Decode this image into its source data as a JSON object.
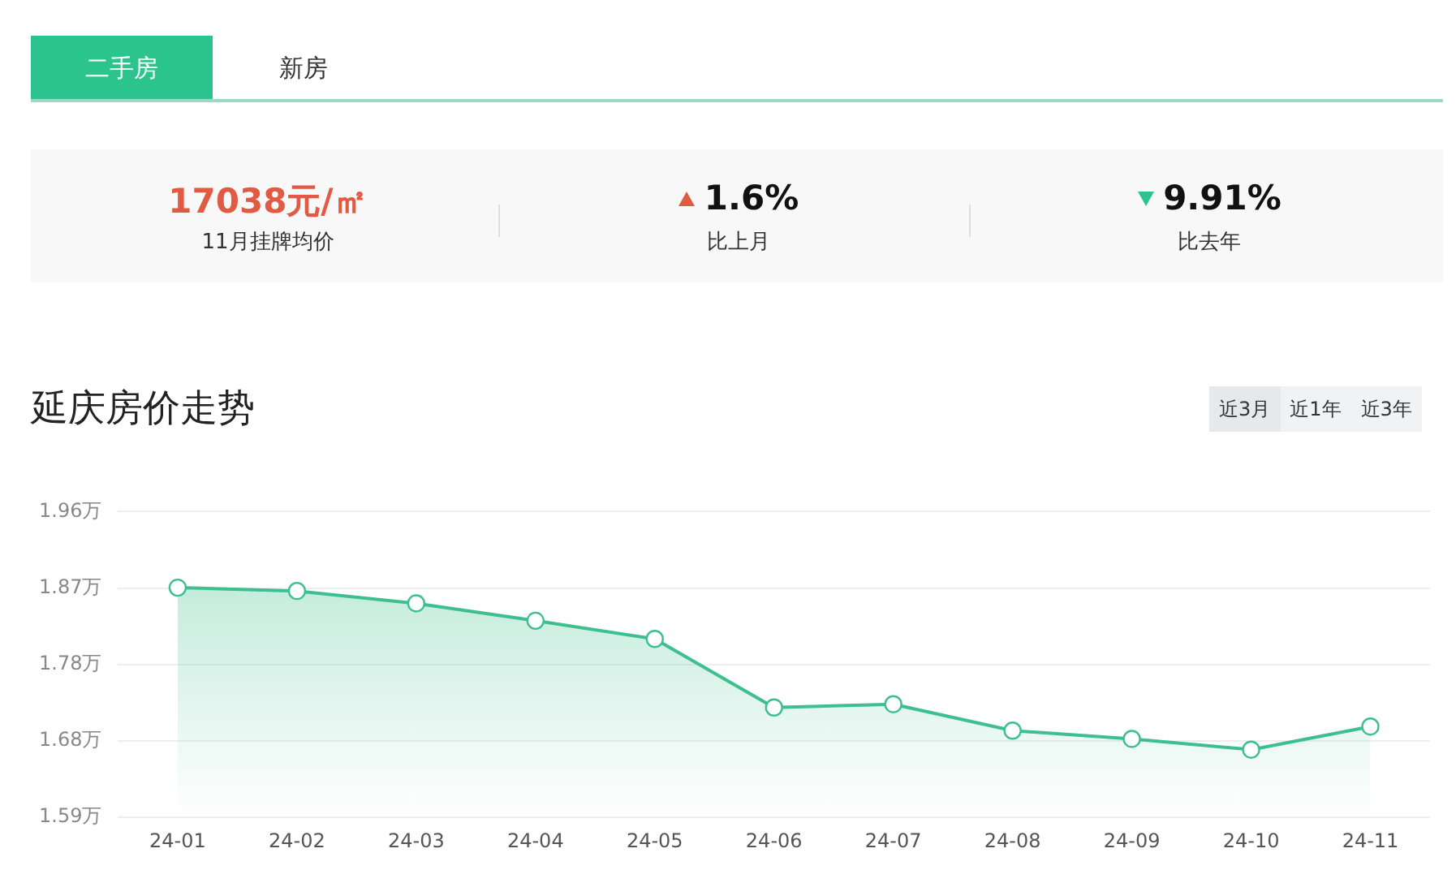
{
  "chart_data": {
    "type": "area",
    "title": "延庆房价走势",
    "annotations": [
      "二手房",
      "新房",
      "17038元/㎡",
      "11月挂牌均价",
      "1.6%",
      "比上月",
      "9.91%",
      "比去年",
      "近3月",
      "近1年",
      "近3年"
    ],
    "categories": [
      "24-01",
      "24-02",
      "24-03",
      "24-04",
      "24-05",
      "24-06",
      "24-07",
      "24-08",
      "24-09",
      "24-10",
      "24-11"
    ],
    "series": [
      {
        "color": "#3dbf8f",
        "values": [
          1.868,
          1.864,
          1.849,
          1.828,
          1.806,
          1.723,
          1.727,
          1.695,
          1.685,
          1.672,
          1.7
        ]
      }
    ],
    "ylim": [
      1.59,
      1.96
    ],
    "yticks": [
      {
        "value": 1.59,
        "label": "1.59万"
      },
      {
        "value": 1.6825,
        "label": "1.68万"
      },
      {
        "value": 1.775,
        "label": "1.78万"
      },
      {
        "value": 1.8675,
        "label": "1.87万"
      },
      {
        "value": 1.96,
        "label": "1.96万"
      }
    ],
    "grid": "y",
    "marker": "circle",
    "legend": false
  }
}
